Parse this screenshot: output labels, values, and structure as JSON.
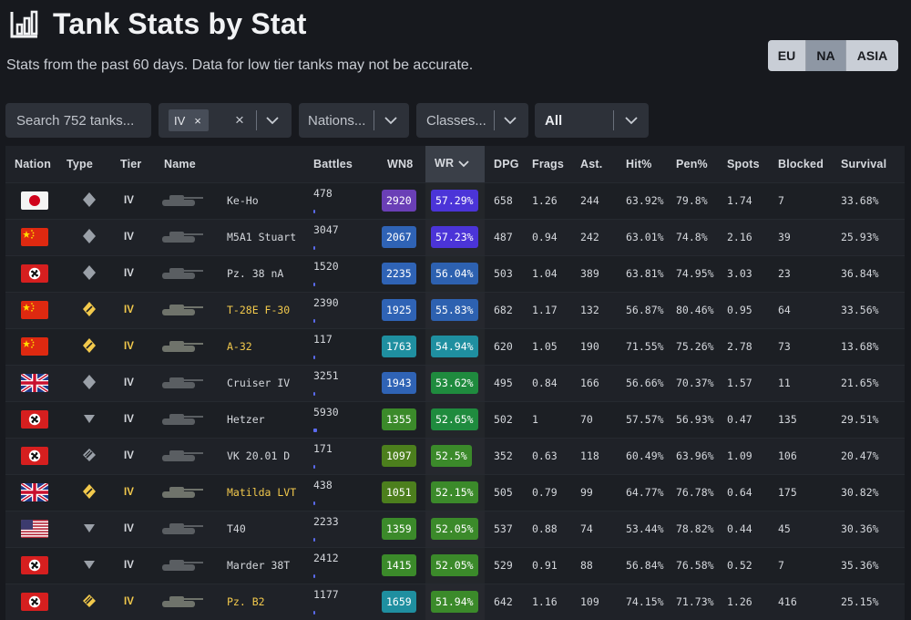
{
  "header": {
    "title": "Tank Stats by Stat",
    "subtitle": "Stats from the past 60 days. Data for low tier tanks may not be accurate."
  },
  "regions": {
    "eu": "EU",
    "na": "NA",
    "asia": "ASIA",
    "selected": "NA"
  },
  "filters": {
    "search_placeholder": "Search 752 tanks...",
    "tier_chip": "IV",
    "chip_remove": "×",
    "clear": "×",
    "nations_placeholder": "Nations...",
    "classes_placeholder": "Classes...",
    "premium_value": "All"
  },
  "table": {
    "headers": {
      "nation": "Nation",
      "type": "Type",
      "tier": "Tier",
      "name": "Name",
      "battles": "Battles",
      "wn8": "WN8",
      "wr": "WR",
      "dpg": "DPG",
      "frags": "Frags",
      "ast": "Ast.",
      "hit": "Hit%",
      "pen": "Pen%",
      "spots": "Spots",
      "blocked": "Blocked",
      "survival": "Survival"
    },
    "rows": [
      {
        "nation": "japan",
        "type": "medium",
        "premium": false,
        "tier": "IV",
        "name": "Ke-Ho",
        "battles": "478",
        "battles_share": 0.01,
        "wn8": "2920",
        "wn8_color": "#6a3fb6",
        "wr": "57.29%",
        "wr_color": "#4b34d8",
        "dpg": "658",
        "frags": "1.26",
        "ast": "244",
        "hit": "63.92%",
        "pen": "79.8%",
        "spots": "1.74",
        "blocked": "7",
        "survival": "33.68%"
      },
      {
        "nation": "china",
        "type": "medium",
        "premium": false,
        "tier": "IV",
        "name": "M5A1 Stuart",
        "battles": "3047",
        "battles_share": 0.04,
        "wn8": "2067",
        "wn8_color": "#2f63b5",
        "wr": "57.23%",
        "wr_color": "#4b34d8",
        "dpg": "487",
        "frags": "0.94",
        "ast": "242",
        "hit": "63.01%",
        "pen": "74.8%",
        "spots": "2.16",
        "blocked": "39",
        "survival": "25.93%"
      },
      {
        "nation": "germany",
        "type": "medium",
        "premium": false,
        "tier": "IV",
        "name": "Pz. 38 nA",
        "battles": "1520",
        "battles_share": 0.02,
        "wn8": "2235",
        "wn8_color": "#2f63b5",
        "wr": "56.04%",
        "wr_color": "#2d61b0",
        "dpg": "503",
        "frags": "1.04",
        "ast": "389",
        "hit": "63.81%",
        "pen": "74.95%",
        "spots": "3.03",
        "blocked": "23",
        "survival": "36.84%"
      },
      {
        "nation": "china",
        "type": "medium",
        "premium": true,
        "tier": "IV",
        "name": "T-28E F-30",
        "battles": "2390",
        "battles_share": 0.03,
        "wn8": "1925",
        "wn8_color": "#2f63b5",
        "wr": "55.83%",
        "wr_color": "#2d61b0",
        "dpg": "682",
        "frags": "1.17",
        "ast": "132",
        "hit": "56.87%",
        "pen": "80.46%",
        "spots": "0.95",
        "blocked": "64",
        "survival": "33.56%"
      },
      {
        "nation": "china",
        "type": "medium",
        "premium": true,
        "tier": "IV",
        "name": "A-32",
        "battles": "117",
        "battles_share": 0.005,
        "wn8": "1763",
        "wn8_color": "#1f8fa0",
        "wr": "54.94%",
        "wr_color": "#1f8fa0",
        "dpg": "620",
        "frags": "1.05",
        "ast": "190",
        "hit": "71.55%",
        "pen": "75.26%",
        "spots": "2.78",
        "blocked": "73",
        "survival": "13.68%"
      },
      {
        "nation": "uk",
        "type": "medium",
        "premium": false,
        "tier": "IV",
        "name": "Cruiser IV",
        "battles": "3251",
        "battles_share": 0.04,
        "wn8": "1943",
        "wn8_color": "#2f63b5",
        "wr": "53.62%",
        "wr_color": "#1f8b3e",
        "dpg": "495",
        "frags": "0.84",
        "ast": "166",
        "hit": "56.66%",
        "pen": "70.37%",
        "spots": "1.57",
        "blocked": "11",
        "survival": "21.65%"
      },
      {
        "nation": "germany",
        "type": "td",
        "premium": false,
        "tier": "IV",
        "name": "Hetzer",
        "battles": "5930",
        "battles_share": 0.07,
        "wn8": "1355",
        "wn8_color": "#3b8a2a",
        "wr": "52.65%",
        "wr_color": "#1f8b3e",
        "dpg": "502",
        "frags": "1",
        "ast": "70",
        "hit": "57.57%",
        "pen": "56.93%",
        "spots": "0.47",
        "blocked": "135",
        "survival": "29.51%"
      },
      {
        "nation": "germany",
        "type": "heavy",
        "premium": false,
        "tier": "IV",
        "name": "VK 20.01 D",
        "battles": "171",
        "battles_share": 0.005,
        "wn8": "1097",
        "wn8_color": "#4c7f1d",
        "wr": "52.5%",
        "wr_color": "#3b8a2a",
        "dpg": "352",
        "frags": "0.63",
        "ast": "118",
        "hit": "60.49%",
        "pen": "63.96%",
        "spots": "1.09",
        "blocked": "106",
        "survival": "20.47%"
      },
      {
        "nation": "uk",
        "type": "medium",
        "premium": true,
        "tier": "IV",
        "name": "Matilda LVT",
        "battles": "438",
        "battles_share": 0.01,
        "wn8": "1051",
        "wn8_color": "#4c7f1d",
        "wr": "52.15%",
        "wr_color": "#3b8a2a",
        "dpg": "505",
        "frags": "0.79",
        "ast": "99",
        "hit": "64.77%",
        "pen": "76.78%",
        "spots": "0.64",
        "blocked": "175",
        "survival": "30.82%"
      },
      {
        "nation": "usa",
        "type": "td",
        "premium": false,
        "tier": "IV",
        "name": "T40",
        "battles": "2233",
        "battles_share": 0.03,
        "wn8": "1359",
        "wn8_color": "#3b8a2a",
        "wr": "52.05%",
        "wr_color": "#3b8a2a",
        "dpg": "537",
        "frags": "0.88",
        "ast": "74",
        "hit": "53.44%",
        "pen": "78.82%",
        "spots": "0.44",
        "blocked": "45",
        "survival": "30.36%"
      },
      {
        "nation": "germany",
        "type": "td",
        "premium": false,
        "tier": "IV",
        "name": "Marder 38T",
        "battles": "2412",
        "battles_share": 0.03,
        "wn8": "1415",
        "wn8_color": "#3b8a2a",
        "wr": "52.05%",
        "wr_color": "#3b8a2a",
        "dpg": "529",
        "frags": "0.91",
        "ast": "88",
        "hit": "56.84%",
        "pen": "76.58%",
        "spots": "0.52",
        "blocked": "7",
        "survival": "35.36%"
      },
      {
        "nation": "germany",
        "type": "heavy",
        "premium": true,
        "tier": "IV",
        "name": "Pz. B2",
        "battles": "1177",
        "battles_share": 0.015,
        "wn8": "1659",
        "wn8_color": "#1f8fa0",
        "wr": "51.94%",
        "wr_color": "#3b8a2a",
        "dpg": "642",
        "frags": "1.16",
        "ast": "109",
        "hit": "74.15%",
        "pen": "71.73%",
        "spots": "1.26",
        "blocked": "416",
        "survival": "25.15%"
      }
    ]
  }
}
